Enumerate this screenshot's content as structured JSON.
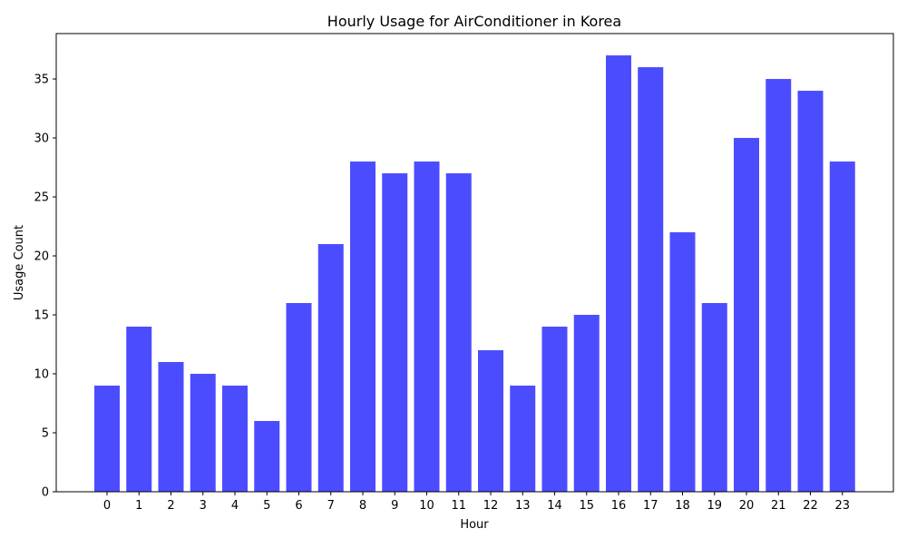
{
  "chart_data": {
    "type": "bar",
    "title": "Hourly Usage for AirConditioner in Korea",
    "xlabel": "Hour",
    "ylabel": "Usage Count",
    "categories": [
      "0",
      "1",
      "2",
      "3",
      "4",
      "5",
      "6",
      "7",
      "8",
      "9",
      "10",
      "11",
      "12",
      "13",
      "14",
      "15",
      "16",
      "17",
      "18",
      "19",
      "20",
      "21",
      "22",
      "23"
    ],
    "values": [
      9,
      14,
      11,
      10,
      9,
      6,
      16,
      21,
      28,
      27,
      28,
      27,
      12,
      9,
      14,
      15,
      37,
      36,
      22,
      16,
      30,
      35,
      34,
      28
    ],
    "ylim": [
      0,
      38.85
    ],
    "yticks": [
      0,
      5,
      10,
      15,
      20,
      25,
      30,
      35
    ],
    "bar_color": "#4c4cff",
    "grid": false,
    "legend": "none"
  }
}
